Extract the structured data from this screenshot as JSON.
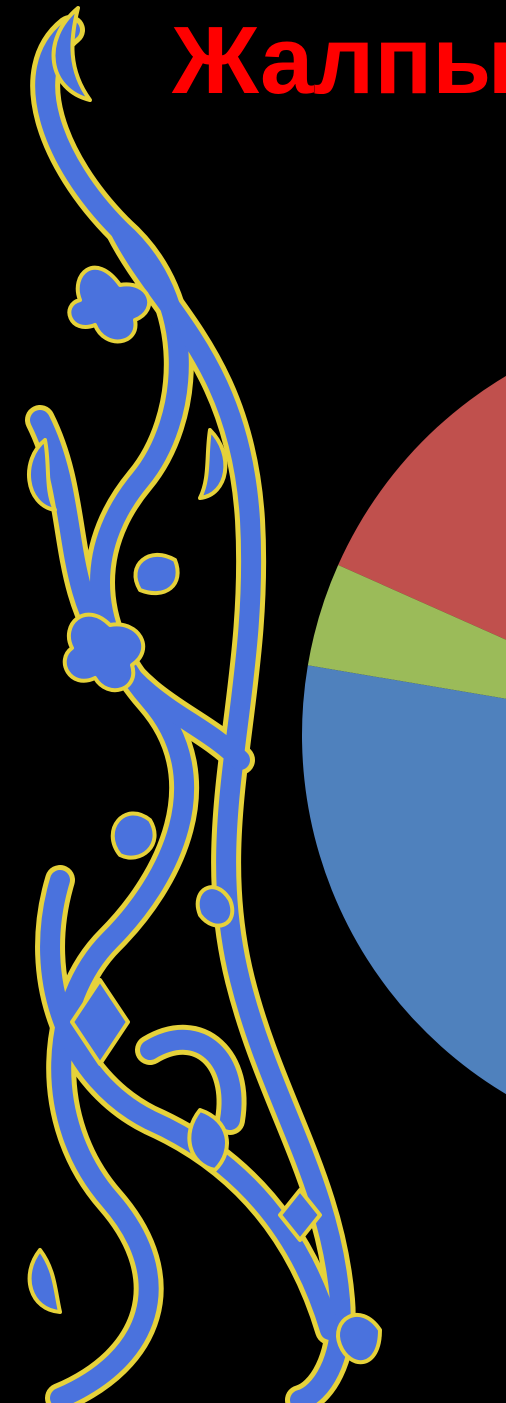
{
  "title": "Жалпы",
  "colors": {
    "background": "#000000",
    "title": "#ff0000",
    "ornament_fill": "#4a72dd",
    "ornament_outline": "#e6d23a"
  },
  "ornament": {
    "icon": "floral-arabesque-ornament"
  },
  "chart_data": {
    "type": "pie",
    "title": "",
    "legend": "none",
    "slices": [
      {
        "label": "26%",
        "value": 26,
        "color": "#c0504d"
      },
      {
        "label": "",
        "value": 70,
        "color": "#4f81bd"
      },
      {
        "label": "",
        "value": 4,
        "color": "#9bbb59"
      }
    ]
  }
}
